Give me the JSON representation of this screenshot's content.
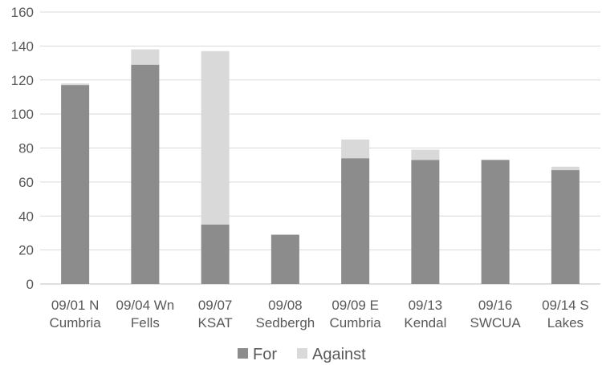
{
  "chart_data": {
    "type": "bar",
    "stacked": true,
    "categories": [
      [
        "09/01 N",
        "Cumbria"
      ],
      [
        "09/04 Wn",
        "Fells"
      ],
      [
        "09/07",
        "KSAT"
      ],
      [
        "09/08",
        "Sedbergh"
      ],
      [
        "09/09 E",
        "Cumbria"
      ],
      [
        "09/13",
        "Kendal"
      ],
      [
        "09/16",
        "SWCUA"
      ],
      [
        "09/14 S",
        "Lakes"
      ]
    ],
    "series": [
      {
        "name": "For",
        "color": "#8c8c8c",
        "values": [
          117,
          129,
          35,
          29,
          74,
          73,
          73,
          67
        ]
      },
      {
        "name": "Against",
        "color": "#d9d9d9",
        "values": [
          1,
          9,
          102,
          0,
          11,
          6,
          0,
          2
        ]
      }
    ],
    "ylim": [
      0,
      160
    ],
    "yticks": [
      "0",
      "20",
      "40",
      "60",
      "80",
      "100",
      "120",
      "140",
      "160"
    ],
    "grid": true,
    "legend_position": "bottom"
  }
}
